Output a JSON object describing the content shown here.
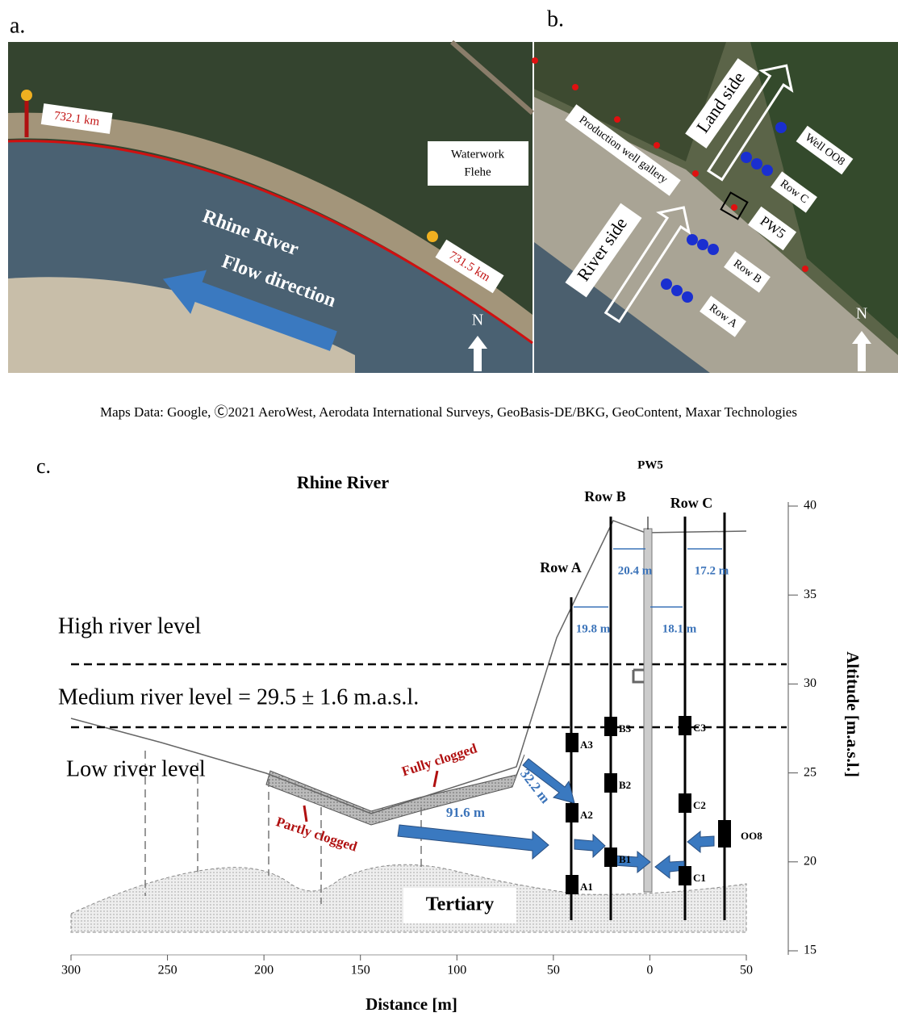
{
  "panel_a": {
    "label": "a.",
    "marker_1": "732.1 km",
    "marker_2": "731.5 km",
    "waterwork": [
      "Waterwork",
      "Flehe"
    ],
    "river": "Rhine River",
    "flow": "Flow direction",
    "north": "N"
  },
  "panel_b": {
    "label": "b.",
    "land_side": "Land side",
    "river_side": "River side",
    "gallery": "Production well gallery",
    "well": "Well OO8",
    "row_c": "Row C",
    "pw5": "PW5",
    "row_b": "Row B",
    "row_a": "Row A",
    "north": "N"
  },
  "caption": "Maps Data: Google, Ⓒ2021 AeroWest, Aerodata International Surveys, GeoBasis-DE/BKG, GeoContent, Maxar Technologies",
  "panel_c": {
    "label": "c.",
    "river": "Rhine River",
    "pw5": "PW5",
    "row_a": "Row A",
    "row_b": "Row B",
    "row_c": "Row C",
    "distances": [
      "20.4 m",
      "17.2 m",
      "19.8 m",
      "18.1 m",
      "32.2 m",
      "91.6 m"
    ],
    "high_level": "High river level",
    "medium_level": "Medium river level = 29.5 ± 1.6 m.a.s.l.",
    "low_level": "Low river level",
    "fully_clogged": "Fully clogged",
    "partly_clogged": "Partly clogged",
    "tertiary": "Tertiary",
    "sensors": [
      "A3",
      "A2",
      "A1",
      "B3",
      "B2",
      "B1",
      "C3",
      "C2",
      "C1",
      "OO8"
    ],
    "x_title": "Distance [m]",
    "y_title": "Altitude [m.a.s.l.]",
    "xticks": [
      {
        "value": -300,
        "label": "300"
      },
      {
        "value": -250,
        "label": "250"
      },
      {
        "value": -200,
        "label": "200"
      },
      {
        "value": -150,
        "label": "150"
      },
      {
        "value": -100,
        "label": "100"
      },
      {
        "value": -50,
        "label": "50"
      },
      0,
      50
    ],
    "yticks": [
      15,
      20,
      25,
      30,
      35,
      40
    ]
  }
}
